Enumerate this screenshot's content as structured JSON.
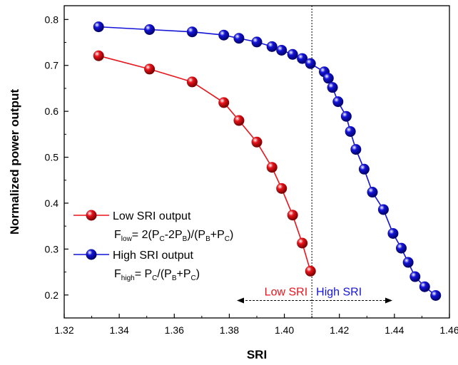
{
  "chart_data": {
    "type": "line",
    "xlabel": "SRI",
    "ylabel": "Normalized power output",
    "xlim": [
      1.32,
      1.46
    ],
    "ylim": [
      0.15,
      0.83
    ],
    "xticks": [
      1.32,
      1.34,
      1.36,
      1.38,
      1.4,
      1.42,
      1.44,
      1.46
    ],
    "yticks": [
      0.2,
      0.3,
      0.4,
      0.5,
      0.6,
      0.7,
      0.8
    ],
    "xtick_labels": [
      "1.32",
      "1.34",
      "1.36",
      "1.38",
      "1.40",
      "1.42",
      "1.44",
      "1.46"
    ],
    "ytick_labels": [
      "0.2",
      "0.3",
      "0.4",
      "0.5",
      "0.6",
      "0.7",
      "0.8"
    ],
    "grid": false,
    "legend_position": "bottom-left",
    "series": [
      {
        "name": "Low SRI output",
        "color": "#e8141b",
        "formula": {
          "F": "F",
          "sub": "low",
          "eq": "= 2(P",
          "c1": "C",
          "m": "-2P",
          "b1": "B",
          "d": ")/(P",
          "b2": "B",
          "p": "+P",
          "c2": "C",
          "e": ")"
        },
        "x": [
          1.3325,
          1.351,
          1.3665,
          1.378,
          1.3835,
          1.39,
          1.3955,
          1.399,
          1.403,
          1.4065,
          1.4095
        ],
        "y": [
          0.721,
          0.692,
          0.664,
          0.619,
          0.58,
          0.533,
          0.478,
          0.432,
          0.374,
          0.313,
          0.252
        ]
      },
      {
        "name": "High SRI output",
        "color": "#1414d9",
        "formula": {
          "F": "F",
          "sub": "high",
          "eq": "= P",
          "c1": "C",
          "d": "/(P",
          "b2": "B",
          "p": "+P",
          "c2": "C",
          "e": ")"
        },
        "x": [
          1.3325,
          1.351,
          1.3665,
          1.378,
          1.3835,
          1.39,
          1.3955,
          1.399,
          1.403,
          1.4065,
          1.4095,
          1.4145,
          1.416,
          1.4175,
          1.4195,
          1.4225,
          1.424,
          1.426,
          1.429,
          1.432,
          1.436,
          1.4395,
          1.4425,
          1.445,
          1.4475,
          1.451,
          1.455
        ],
        "y": [
          0.784,
          0.778,
          0.773,
          0.766,
          0.759,
          0.751,
          0.741,
          0.733,
          0.724,
          0.715,
          0.704,
          0.686,
          0.672,
          0.652,
          0.621,
          0.589,
          0.556,
          0.517,
          0.474,
          0.424,
          0.386,
          0.334,
          0.302,
          0.271,
          0.24,
          0.218,
          0.199
        ]
      }
    ],
    "annotations": {
      "threshold_x": 1.41,
      "low_label": "Low SRI",
      "high_label": "High SRI",
      "arrow_left_x": 1.383,
      "arrow_right_x": 1.439,
      "arrow_y": 0.188,
      "low_color": "#e8141b",
      "high_color": "#1414d9"
    }
  }
}
